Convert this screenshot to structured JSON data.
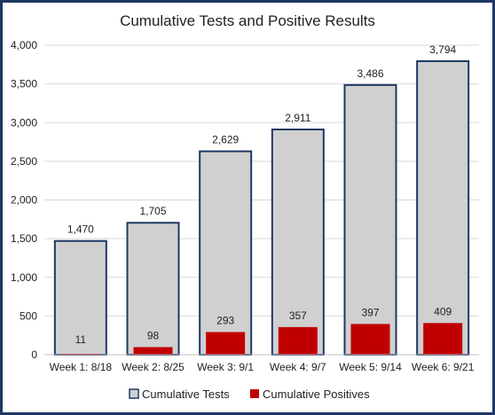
{
  "chart_data": {
    "type": "bar",
    "title": "Cumulative Tests and Positive Results",
    "xlabel": "",
    "ylabel": "",
    "categories": [
      "Week 1: 8/18",
      "Week 2: 8/25",
      "Week 3: 9/1",
      "Week 4: 9/7",
      "Week 5: 9/14",
      "Week 6: 9/21"
    ],
    "series": [
      {
        "name": "Cumulative Tests",
        "values": [
          1470,
          1705,
          2629,
          2911,
          3486,
          3794
        ],
        "color": "#d0d0d0",
        "stroke": "#1f3864"
      },
      {
        "name": "Cumulative Positives",
        "values": [
          11,
          98,
          293,
          357,
          397,
          409
        ],
        "color": "#c00000"
      }
    ],
    "value_labels": {
      "tests": [
        "1,470",
        "1,705",
        "2,629",
        "2,911",
        "3,486",
        "3,794"
      ],
      "positives": [
        "11",
        "98",
        "293",
        "357",
        "397",
        "409"
      ]
    },
    "y_ticks": [
      "0",
      "500",
      "1,000",
      "1,500",
      "2,000",
      "2,500",
      "3,000",
      "3,500",
      "4,000"
    ],
    "ylim": [
      0,
      4000
    ],
    "grid": true,
    "legend_position": "bottom"
  }
}
